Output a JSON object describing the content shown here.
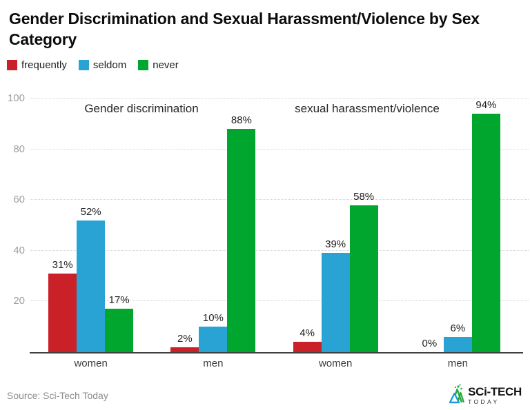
{
  "title": "Gender Discrimination and Sexual Harassment/Violence by Sex Category",
  "legend": {
    "items": [
      {
        "label": "frequently",
        "color": "#c92127"
      },
      {
        "label": "seldom",
        "color": "#29a3d4"
      },
      {
        "label": "never",
        "color": "#00a62e"
      }
    ]
  },
  "chart_data": {
    "type": "bar",
    "title": "Gender Discrimination and Sexual Harassment/Violence by Sex Category",
    "series": [
      "frequently",
      "seldom",
      "never"
    ],
    "colors": [
      "#c92127",
      "#29a3d4",
      "#00a62e"
    ],
    "panels": [
      {
        "label": "Gender discrimination",
        "groups": [
          {
            "category": "women",
            "values": [
              31,
              52,
              17
            ]
          },
          {
            "category": "men",
            "values": [
              2,
              10,
              88
            ]
          }
        ]
      },
      {
        "label": "sexual harassment/violence",
        "groups": [
          {
            "category": "women",
            "values": [
              4,
              39,
              58
            ]
          },
          {
            "category": "men",
            "values": [
              0,
              6,
              94
            ]
          }
        ]
      }
    ],
    "value_suffix": "%",
    "ylim": [
      0,
      100
    ],
    "yticks": [
      20,
      40,
      60,
      80,
      100
    ],
    "grid": "horizontal-dotted",
    "legend_position": "top-left",
    "xlabel": "",
    "ylabel": ""
  },
  "footer": {
    "source": "Source: Sci-Tech Today",
    "logo": {
      "text": "SCi-TECH",
      "subtext": "TODAY"
    }
  }
}
